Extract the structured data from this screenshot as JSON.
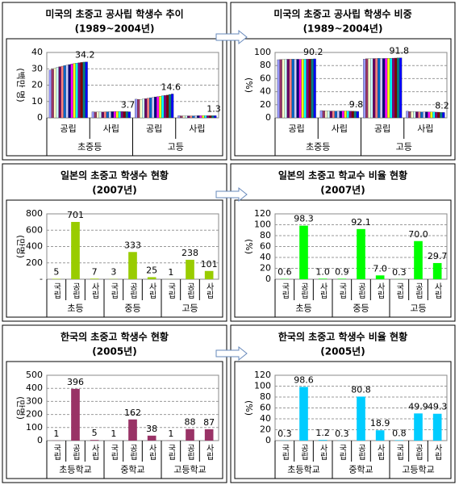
{
  "chart_data": [
    {
      "type": "grouped_bar",
      "title": "미국의 초중고 공사립 학생수 추이",
      "subtitle": "(1989~2004년)",
      "y_label": "(백만 명)",
      "categories": [
        "공립",
        "사립",
        "공립",
        "사립"
      ],
      "groups": [
        "초중등",
        "고등"
      ],
      "ylim": [
        0,
        40
      ],
      "yticks": [
        0,
        10,
        20,
        30,
        40
      ],
      "grid": true,
      "label_color": "#7777aa",
      "series": [
        {
          "color": "#9999ff",
          "values": [
            29.2,
            3.7,
            11.4,
            1.3
          ]
        },
        {
          "color": "#993366",
          "values": [
            29.8,
            3.6,
            11.3,
            1.2
          ]
        },
        {
          "color": "#ffffcc",
          "values": [
            30.4,
            3.6,
            11.3,
            1.2
          ]
        },
        {
          "color": "#ccffff",
          "values": [
            30.9,
            3.6,
            11.5,
            1.2
          ]
        },
        {
          "color": "#660066",
          "values": [
            31.3,
            3.6,
            11.7,
            1.2
          ]
        },
        {
          "color": "#ff8080",
          "values": [
            31.6,
            3.7,
            12.0,
            1.2
          ]
        },
        {
          "color": "#0066cc",
          "values": [
            32.0,
            3.7,
            12.3,
            1.2
          ]
        },
        {
          "color": "#ccccff",
          "values": [
            32.3,
            3.8,
            12.5,
            1.3
          ]
        },
        {
          "color": "#000080",
          "values": [
            32.6,
            3.8,
            12.8,
            1.3
          ]
        },
        {
          "color": "#ff00ff",
          "values": [
            33.0,
            3.9,
            13.0,
            1.3
          ]
        },
        {
          "color": "#ffff00",
          "values": [
            33.3,
            3.9,
            13.2,
            1.3
          ]
        },
        {
          "color": "#00ffff",
          "values": [
            33.5,
            3.9,
            13.5,
            1.3
          ]
        },
        {
          "color": "#800080",
          "values": [
            33.7,
            3.9,
            13.7,
            1.3
          ]
        },
        {
          "color": "#800000",
          "values": [
            33.9,
            3.8,
            13.9,
            1.3
          ]
        },
        {
          "color": "#008080",
          "values": [
            34.1,
            3.8,
            14.3,
            1.3
          ]
        },
        {
          "color": "#0000ff",
          "values": [
            34.2,
            3.7,
            14.6,
            1.3
          ]
        }
      ]
    },
    {
      "type": "grouped_bar",
      "title": "미국의 초중고 공사립 학생수 비중",
      "subtitle": "(1989~2004년)",
      "y_label": "(%)",
      "categories": [
        "공립",
        "사립",
        "공립",
        "사립"
      ],
      "groups": [
        "초중등",
        "고등"
      ],
      "ylim": [
        0,
        100
      ],
      "yticks": [
        0,
        20,
        40,
        60,
        80,
        100
      ],
      "grid": true,
      "label_color": "#999900",
      "series": [
        {
          "color": "#9999ff",
          "values": [
            88.9,
            11.1,
            89.8,
            10.2
          ]
        },
        {
          "color": "#993366",
          "values": [
            89.2,
            10.8,
            90.4,
            9.6
          ]
        },
        {
          "color": "#ffffcc",
          "values": [
            89.4,
            10.6,
            90.4,
            9.6
          ]
        },
        {
          "color": "#ccffff",
          "values": [
            89.5,
            10.5,
            90.6,
            9.4
          ]
        },
        {
          "color": "#660066",
          "values": [
            89.6,
            10.4,
            90.7,
            9.3
          ]
        },
        {
          "color": "#ff8080",
          "values": [
            89.6,
            10.4,
            90.8,
            9.2
          ]
        },
        {
          "color": "#0066cc",
          "values": [
            89.7,
            10.3,
            91.0,
            9.0
          ]
        },
        {
          "color": "#ccccff",
          "values": [
            89.6,
            10.4,
            90.8,
            9.2
          ]
        },
        {
          "color": "#000080",
          "values": [
            89.6,
            10.4,
            90.8,
            9.2
          ]
        },
        {
          "color": "#ff00ff",
          "values": [
            89.5,
            10.5,
            90.9,
            9.1
          ]
        },
        {
          "color": "#ffff00",
          "values": [
            89.5,
            10.5,
            91.0,
            9.0
          ]
        },
        {
          "color": "#00ffff",
          "values": [
            89.6,
            10.4,
            91.1,
            8.9
          ]
        },
        {
          "color": "#800080",
          "values": [
            89.7,
            10.3,
            91.3,
            8.7
          ]
        },
        {
          "color": "#800000",
          "values": [
            89.9,
            10.1,
            91.4,
            8.6
          ]
        },
        {
          "color": "#008080",
          "values": [
            90.0,
            10.0,
            91.7,
            8.3
          ]
        },
        {
          "color": "#0000ff",
          "values": [
            90.2,
            9.8,
            91.8,
            8.2
          ]
        }
      ]
    },
    {
      "type": "bar",
      "title": "일본의 초중고 학생수 현황",
      "subtitle": "(2007년)",
      "y_label": "(만명)",
      "categories": [
        "국립",
        "공립",
        "사립",
        "국립",
        "공립",
        "사립",
        "국립",
        "공립",
        "사립"
      ],
      "groups": [
        "초등",
        "중등",
        "고등"
      ],
      "ylim": [
        0,
        800
      ],
      "yticks": [
        {
          "value": 0,
          "label": "-"
        },
        200,
        400,
        600,
        800
      ],
      "grid": true,
      "color": "#99cc00",
      "label_color": "#808000",
      "values": [
        5,
        701,
        7,
        3,
        333,
        25,
        1,
        238,
        101
      ]
    },
    {
      "type": "bar",
      "title": "일본의 초중고 학교수 비율 현황",
      "subtitle": "(2007년)",
      "y_label": "(%)",
      "categories": [
        "국립",
        "공립",
        "사립",
        "국립",
        "공립",
        "사립",
        "국립",
        "공립",
        "사립"
      ],
      "groups": [
        "초등",
        "중등",
        "고등"
      ],
      "ylim": [
        0,
        120
      ],
      "yticks": [
        0,
        20,
        40,
        60,
        80,
        100,
        120
      ],
      "grid": true,
      "color": "#00ff00",
      "label_color": "#338833",
      "values": [
        0.6,
        98.3,
        1.0,
        0.9,
        92.1,
        7.0,
        0.3,
        70.0,
        29.7
      ],
      "value_labels": [
        "0.6",
        "98.3",
        "1.0",
        "0.9",
        "92.1",
        "7.0",
        "0.3",
        "70.0",
        "29.7"
      ]
    },
    {
      "type": "bar",
      "title": "한국의 초중고 학생수 현황",
      "subtitle": "(2005년)",
      "y_label": "(만명)",
      "categories": [
        "국립",
        "공립",
        "사립",
        "국립",
        "공립",
        "사립",
        "국립",
        "공립",
        "사립"
      ],
      "groups": [
        "초등학교",
        "중학교",
        "고등학교"
      ],
      "ylim": [
        0,
        500
      ],
      "yticks": [
        0,
        100,
        200,
        300,
        400,
        500
      ],
      "grid": true,
      "color": "#993366",
      "label_color": "#888888",
      "values": [
        1,
        396,
        5,
        1,
        162,
        38,
        1,
        88,
        87
      ]
    },
    {
      "type": "bar",
      "title": "한국의 초중고 학생수 비율 현황",
      "subtitle": "(2005년)",
      "y_label": "(%)",
      "categories": [
        "국립",
        "공립",
        "사립",
        "국립",
        "공립",
        "사립",
        "국립",
        "공립",
        "사립"
      ],
      "groups": [
        "초등학교",
        "중학교",
        "고등학교"
      ],
      "ylim": [
        0,
        120
      ],
      "yticks": [
        0,
        20,
        40,
        60,
        80,
        100,
        120
      ],
      "grid": true,
      "color": "#00ccff",
      "label_color": "#cc6600",
      "values": [
        0.3,
        98.6,
        1.2,
        0.3,
        80.8,
        18.9,
        0.8,
        49.9,
        49.3
      ]
    }
  ]
}
